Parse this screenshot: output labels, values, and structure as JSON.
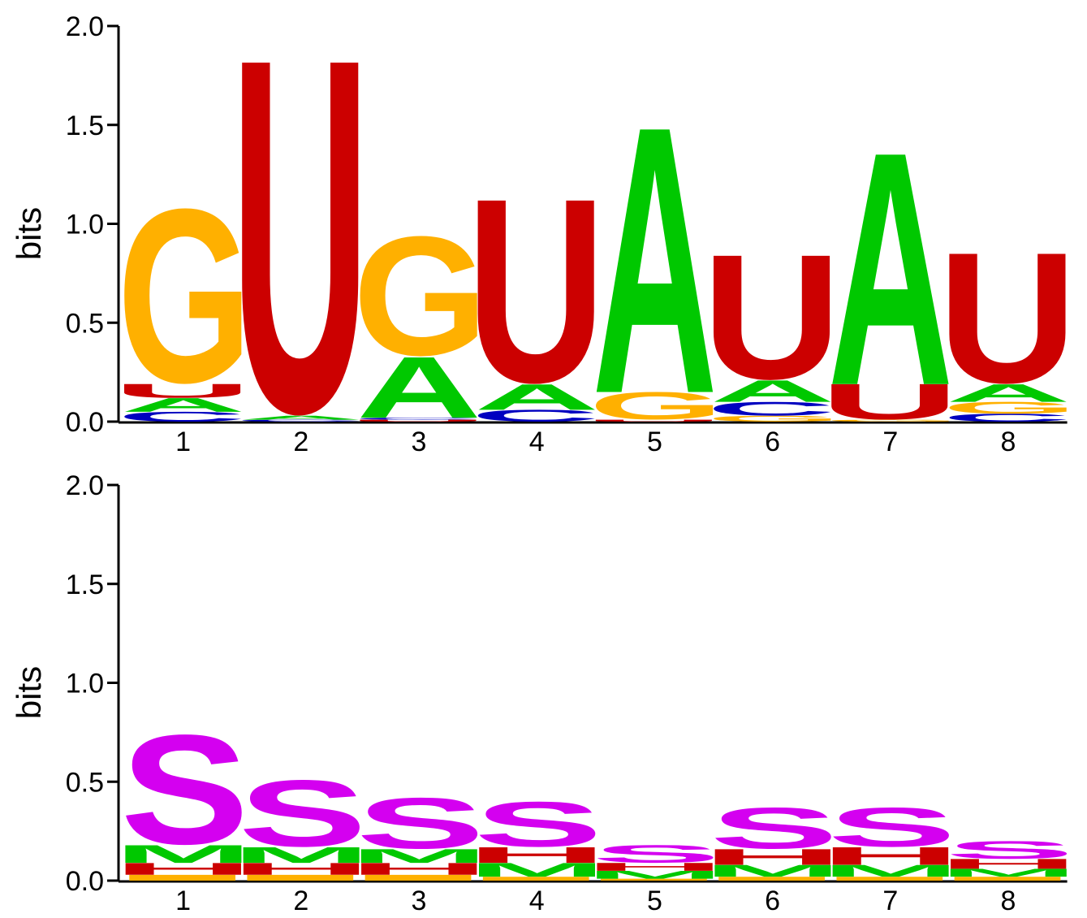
{
  "colors": {
    "A": "#00c800",
    "C": "#0000c0",
    "G": "#ffb000",
    "U": "#cc0000",
    "S": "#d400f0",
    "M": "#00c800",
    "H": "#cc0000",
    "I": "#ffb000"
  },
  "chart_data": [
    {
      "type": "sequence-logo",
      "ylabel": "bits",
      "ylim": [
        0,
        2.0
      ],
      "yticks": [
        "0.0",
        "0.5",
        "1.0",
        "1.5",
        "2.0"
      ],
      "positions": [
        "1",
        "2",
        "3",
        "4",
        "5",
        "6",
        "7",
        "8"
      ],
      "stacks": [
        [
          {
            "letter": "C",
            "height": 0.05
          },
          {
            "letter": "A",
            "height": 0.07
          },
          {
            "letter": "U",
            "height": 0.07
          },
          {
            "letter": "G",
            "height": 0.89
          }
        ],
        [
          {
            "letter": "C",
            "height": 0.01
          },
          {
            "letter": "A",
            "height": 0.02
          },
          {
            "letter": "U",
            "height": 1.79
          }
        ],
        [
          {
            "letter": "U",
            "height": 0.01
          },
          {
            "letter": "C",
            "height": 0.01
          },
          {
            "letter": "A",
            "height": 0.31
          },
          {
            "letter": "G",
            "height": 0.61
          }
        ],
        [
          {
            "letter": "C",
            "height": 0.06
          },
          {
            "letter": "A",
            "height": 0.13
          },
          {
            "letter": "U",
            "height": 0.93
          }
        ],
        [
          {
            "letter": "U",
            "height": 0.01
          },
          {
            "letter": "G",
            "height": 0.14
          },
          {
            "letter": "A",
            "height": 1.35
          }
        ],
        [
          {
            "letter": "G",
            "height": 0.03
          },
          {
            "letter": "C",
            "height": 0.07
          },
          {
            "letter": "A",
            "height": 0.11
          },
          {
            "letter": "U",
            "height": 0.63
          }
        ],
        [
          {
            "letter": "G",
            "height": 0.01
          },
          {
            "letter": "U",
            "height": 0.18
          },
          {
            "letter": "A",
            "height": 1.18
          }
        ],
        [
          {
            "letter": "C",
            "height": 0.04
          },
          {
            "letter": "G",
            "height": 0.06
          },
          {
            "letter": "A",
            "height": 0.09
          },
          {
            "letter": "U",
            "height": 0.66
          }
        ]
      ]
    },
    {
      "type": "sequence-logo",
      "ylabel": "bits",
      "ylim": [
        0,
        2.0
      ],
      "yticks": [
        "0.0",
        "0.5",
        "1.0",
        "1.5",
        "2.0"
      ],
      "positions": [
        "1",
        "2",
        "3",
        "4",
        "5",
        "6",
        "7",
        "8"
      ],
      "stacks": [
        [
          {
            "letter": "I",
            "height": 0.03
          },
          {
            "letter": "H",
            "height": 0.06
          },
          {
            "letter": "M",
            "height": 0.09
          },
          {
            "letter": "S",
            "height": 0.56
          }
        ],
        [
          {
            "letter": "I",
            "height": 0.03
          },
          {
            "letter": "H",
            "height": 0.06
          },
          {
            "letter": "M",
            "height": 0.08
          },
          {
            "letter": "S",
            "height": 0.34
          }
        ],
        [
          {
            "letter": "I",
            "height": 0.03
          },
          {
            "letter": "H",
            "height": 0.06
          },
          {
            "letter": "M",
            "height": 0.07
          },
          {
            "letter": "S",
            "height": 0.26
          }
        ],
        [
          {
            "letter": "I",
            "height": 0.02
          },
          {
            "letter": "M",
            "height": 0.07
          },
          {
            "letter": "H",
            "height": 0.08
          },
          {
            "letter": "S",
            "height": 0.23
          }
        ],
        [
          {
            "letter": "I",
            "height": 0.01
          },
          {
            "letter": "M",
            "height": 0.04
          },
          {
            "letter": "H",
            "height": 0.04
          },
          {
            "letter": "S",
            "height": 0.09
          }
        ],
        [
          {
            "letter": "I",
            "height": 0.02
          },
          {
            "letter": "M",
            "height": 0.06
          },
          {
            "letter": "H",
            "height": 0.08
          },
          {
            "letter": "S",
            "height": 0.21
          }
        ],
        [
          {
            "letter": "I",
            "height": 0.02
          },
          {
            "letter": "M",
            "height": 0.06
          },
          {
            "letter": "H",
            "height": 0.09
          },
          {
            "letter": "S",
            "height": 0.2
          }
        ],
        [
          {
            "letter": "I",
            "height": 0.02
          },
          {
            "letter": "M",
            "height": 0.04
          },
          {
            "letter": "H",
            "height": 0.05
          },
          {
            "letter": "S",
            "height": 0.09
          }
        ]
      ]
    }
  ]
}
